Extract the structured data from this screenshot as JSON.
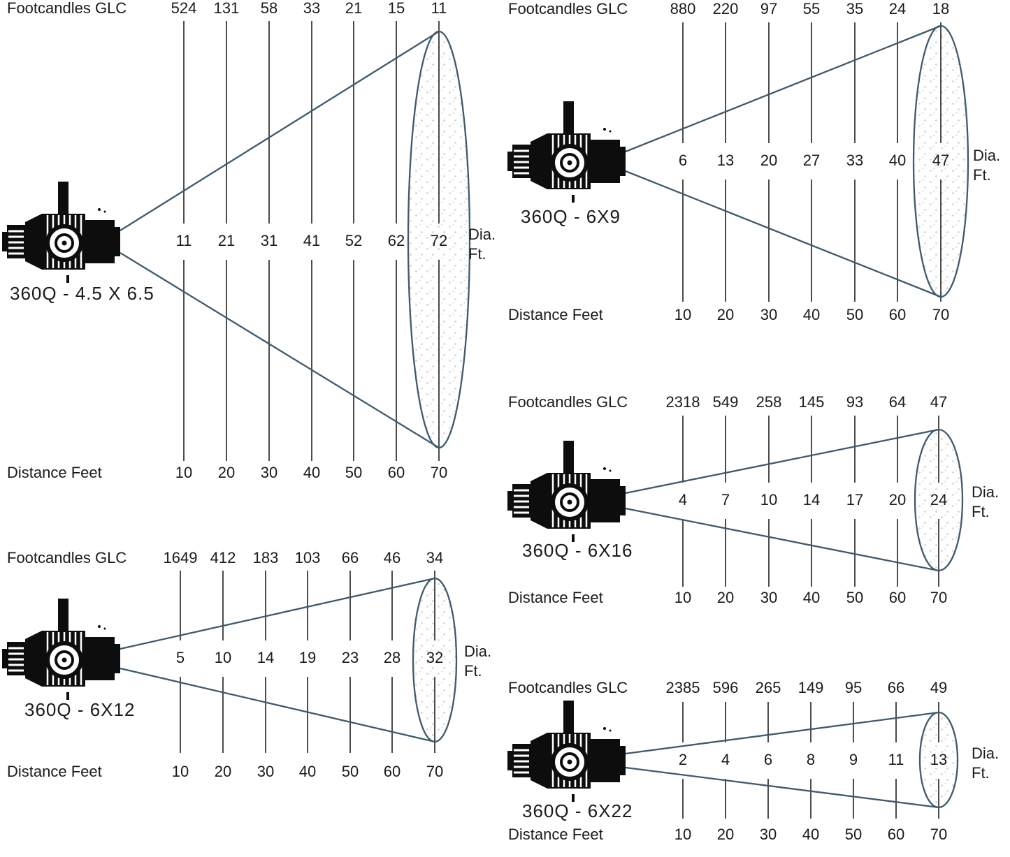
{
  "page": {
    "background": "#ffffff"
  },
  "colors": {
    "beam_line": "#3e5a6d",
    "grid_line": "#2d2d2d",
    "text": "#1b1b1b",
    "fixture": "#0d0d0d",
    "stipple_dot": "#d4d4d4"
  },
  "labels": {
    "footcandles": "Footcandles GLC",
    "distance": "Distance Feet",
    "diameter_line1": "Dia.",
    "diameter_line2": "Ft."
  },
  "chart_data": [
    {
      "type": "beam-cone",
      "fixture": "360Q - 4.5 X 6.5",
      "distances_feet": [
        10,
        20,
        30,
        40,
        50,
        60,
        70
      ],
      "footcandles_glc": [
        524,
        131,
        58,
        33,
        21,
        15,
        11
      ],
      "beam_diameter_feet": [
        11,
        21,
        31,
        41,
        52,
        62,
        72
      ]
    },
    {
      "type": "beam-cone",
      "fixture": "360Q - 6X9",
      "distances_feet": [
        10,
        20,
        30,
        40,
        50,
        60,
        70
      ],
      "footcandles_glc": [
        880,
        220,
        97,
        55,
        35,
        24,
        18
      ],
      "beam_diameter_feet": [
        6,
        13,
        20,
        27,
        33,
        40,
        47
      ]
    },
    {
      "type": "beam-cone",
      "fixture": "360Q - 6X16",
      "distances_feet": [
        10,
        20,
        30,
        40,
        50,
        60,
        70
      ],
      "footcandles_glc": [
        2318,
        549,
        258,
        145,
        93,
        64,
        47
      ],
      "beam_diameter_feet": [
        4,
        7,
        10,
        14,
        17,
        20,
        24
      ]
    },
    {
      "type": "beam-cone",
      "fixture": "360Q - 6X12",
      "distances_feet": [
        10,
        20,
        30,
        40,
        50,
        60,
        70
      ],
      "footcandles_glc": [
        1649,
        412,
        183,
        103,
        66,
        46,
        34
      ],
      "beam_diameter_feet": [
        5,
        10,
        14,
        19,
        23,
        28,
        32
      ]
    },
    {
      "type": "beam-cone",
      "fixture": "360Q - 6X22",
      "distances_feet": [
        10,
        20,
        30,
        40,
        50,
        60,
        70
      ],
      "footcandles_glc": [
        2385,
        596,
        265,
        149,
        95,
        66,
        49
      ],
      "beam_diameter_feet": [
        2,
        4,
        6,
        8,
        9,
        11,
        13
      ]
    }
  ]
}
